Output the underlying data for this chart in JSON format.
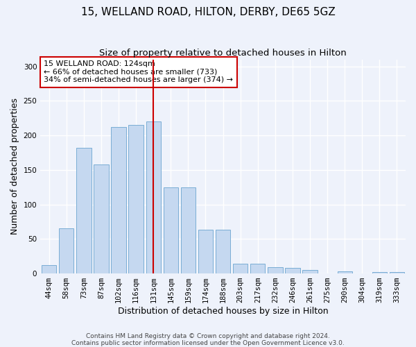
{
  "title": "15, WELLAND ROAD, HILTON, DERBY, DE65 5GZ",
  "subtitle": "Size of property relative to detached houses in Hilton",
  "xlabel": "Distribution of detached houses by size in Hilton",
  "ylabel": "Number of detached properties",
  "categories": [
    "44sqm",
    "58sqm",
    "73sqm",
    "87sqm",
    "102sqm",
    "116sqm",
    "131sqm",
    "145sqm",
    "159sqm",
    "174sqm",
    "188sqm",
    "203sqm",
    "217sqm",
    "232sqm",
    "246sqm",
    "261sqm",
    "275sqm",
    "290sqm",
    "304sqm",
    "319sqm",
    "333sqm"
  ],
  "values": [
    12,
    65,
    182,
    158,
    212,
    215,
    220,
    125,
    125,
    63,
    63,
    14,
    14,
    9,
    8,
    5,
    0,
    3,
    0,
    2,
    2
  ],
  "bar_color": "#c5d8f0",
  "bar_edge_color": "#7aadd4",
  "vline_x": 6,
  "vline_color": "#cc0000",
  "annotation_text": "15 WELLAND ROAD: 124sqm\n← 66% of detached houses are smaller (733)\n34% of semi-detached houses are larger (374) →",
  "annotation_box_color": "#ffffff",
  "annotation_box_edge_color": "#cc0000",
  "ylim": [
    0,
    310
  ],
  "yticks": [
    0,
    50,
    100,
    150,
    200,
    250,
    300
  ],
  "footer_text": "Contains HM Land Registry data © Crown copyright and database right 2024.\nContains public sector information licensed under the Open Government Licence v3.0.",
  "background_color": "#eef2fb",
  "grid_color": "#ffffff",
  "title_fontsize": 11,
  "subtitle_fontsize": 9.5,
  "axis_label_fontsize": 9,
  "tick_fontsize": 7.5,
  "footer_fontsize": 6.5
}
